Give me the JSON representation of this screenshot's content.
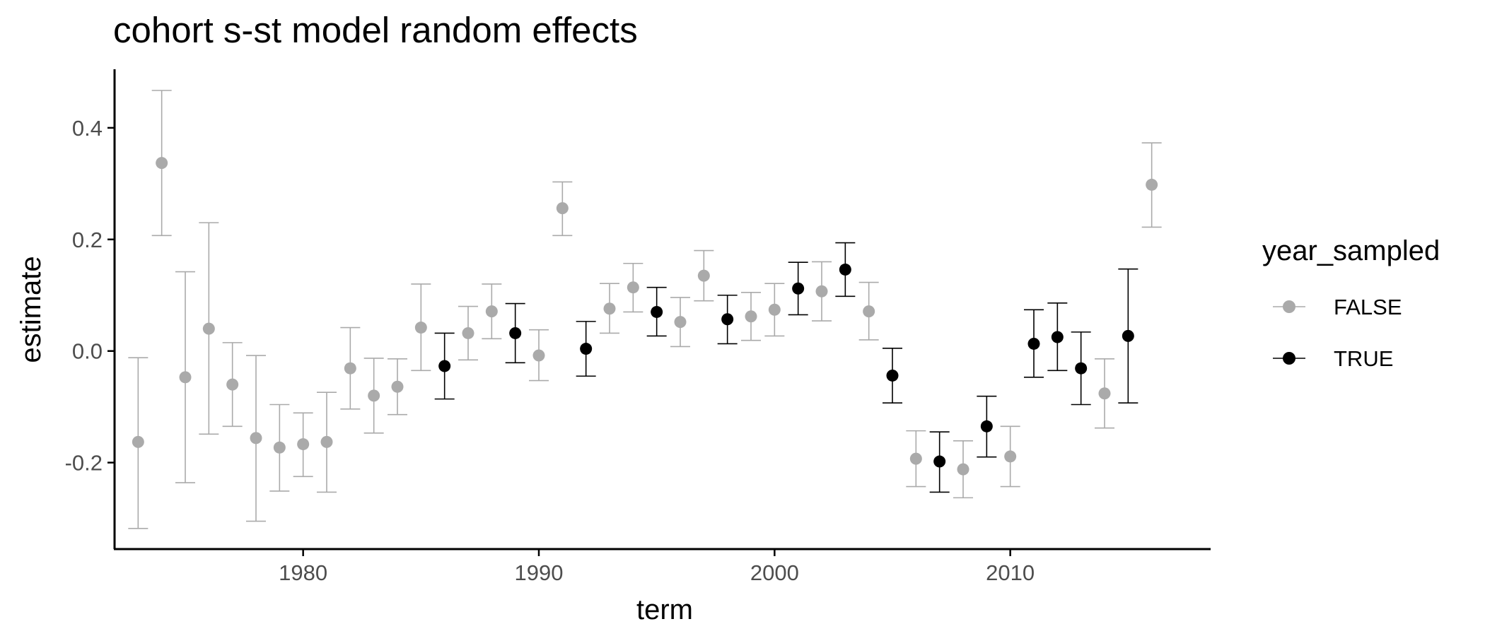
{
  "chart_data": {
    "type": "scatter",
    "title": "cohort s-st model random effects",
    "xlabel": "term",
    "ylabel": "estimate",
    "xlim": [
      1972,
      2018.5
    ],
    "ylim": [
      -0.355,
      0.505
    ],
    "x_ticks": [
      1980,
      1990,
      2000,
      2010
    ],
    "x_tick_labels": [
      "1980",
      "1990",
      "2000",
      "2010"
    ],
    "y_ticks": [
      -0.2,
      0.0,
      0.2,
      0.4
    ],
    "y_tick_labels": [
      "-0.2",
      "0.0",
      "0.2",
      "0.4"
    ],
    "grid": false,
    "legend": {
      "title": "year_sampled",
      "position": "right",
      "entries": [
        {
          "label": "FALSE",
          "color": "#aaaaaa"
        },
        {
          "label": "TRUE",
          "color": "#000000"
        }
      ]
    },
    "series": [
      {
        "name": "FALSE",
        "color": "#aaaaaa",
        "points": [
          {
            "x": 1973,
            "y": -0.163,
            "lo": -0.318,
            "hi": -0.012
          },
          {
            "x": 1974,
            "y": 0.337,
            "lo": 0.207,
            "hi": 0.467
          },
          {
            "x": 1975,
            "y": -0.047,
            "lo": -0.236,
            "hi": 0.142
          },
          {
            "x": 1976,
            "y": 0.04,
            "lo": -0.149,
            "hi": 0.23
          },
          {
            "x": 1977,
            "y": -0.06,
            "lo": -0.135,
            "hi": 0.015
          },
          {
            "x": 1978,
            "y": -0.156,
            "lo": -0.305,
            "hi": -0.008
          },
          {
            "x": 1979,
            "y": -0.173,
            "lo": -0.251,
            "hi": -0.096
          },
          {
            "x": 1980,
            "y": -0.167,
            "lo": -0.225,
            "hi": -0.111
          },
          {
            "x": 1981,
            "y": -0.163,
            "lo": -0.253,
            "hi": -0.074
          },
          {
            "x": 1982,
            "y": -0.031,
            "lo": -0.104,
            "hi": 0.042
          },
          {
            "x": 1983,
            "y": -0.08,
            "lo": -0.147,
            "hi": -0.013
          },
          {
            "x": 1984,
            "y": -0.064,
            "lo": -0.114,
            "hi": -0.014
          },
          {
            "x": 1985,
            "y": 0.042,
            "lo": -0.035,
            "hi": 0.12
          },
          {
            "x": 1987,
            "y": 0.032,
            "lo": -0.016,
            "hi": 0.08
          },
          {
            "x": 1988,
            "y": 0.071,
            "lo": 0.022,
            "hi": 0.12
          },
          {
            "x": 1990,
            "y": -0.008,
            "lo": -0.053,
            "hi": 0.038
          },
          {
            "x": 1991,
            "y": 0.256,
            "lo": 0.207,
            "hi": 0.303
          },
          {
            "x": 1993,
            "y": 0.076,
            "lo": 0.032,
            "hi": 0.121
          },
          {
            "x": 1994,
            "y": 0.114,
            "lo": 0.07,
            "hi": 0.157
          },
          {
            "x": 1996,
            "y": 0.052,
            "lo": 0.008,
            "hi": 0.096
          },
          {
            "x": 1997,
            "y": 0.135,
            "lo": 0.09,
            "hi": 0.18
          },
          {
            "x": 1999,
            "y": 0.062,
            "lo": 0.019,
            "hi": 0.105
          },
          {
            "x": 2000,
            "y": 0.074,
            "lo": 0.027,
            "hi": 0.121
          },
          {
            "x": 2002,
            "y": 0.107,
            "lo": 0.054,
            "hi": 0.16
          },
          {
            "x": 2004,
            "y": 0.071,
            "lo": 0.02,
            "hi": 0.123
          },
          {
            "x": 2006,
            "y": -0.193,
            "lo": -0.243,
            "hi": -0.143
          },
          {
            "x": 2008,
            "y": -0.212,
            "lo": -0.263,
            "hi": -0.161
          },
          {
            "x": 2010,
            "y": -0.189,
            "lo": -0.243,
            "hi": -0.135
          },
          {
            "x": 2014,
            "y": -0.076,
            "lo": -0.138,
            "hi": -0.014
          },
          {
            "x": 2016,
            "y": 0.298,
            "lo": 0.222,
            "hi": 0.373
          }
        ]
      },
      {
        "name": "TRUE",
        "color": "#000000",
        "points": [
          {
            "x": 1986,
            "y": -0.027,
            "lo": -0.086,
            "hi": 0.032
          },
          {
            "x": 1989,
            "y": 0.032,
            "lo": -0.021,
            "hi": 0.085
          },
          {
            "x": 1992,
            "y": 0.004,
            "lo": -0.045,
            "hi": 0.053
          },
          {
            "x": 1995,
            "y": 0.07,
            "lo": 0.027,
            "hi": 0.114
          },
          {
            "x": 1998,
            "y": 0.057,
            "lo": 0.013,
            "hi": 0.1
          },
          {
            "x": 2001,
            "y": 0.112,
            "lo": 0.065,
            "hi": 0.159
          },
          {
            "x": 2003,
            "y": 0.146,
            "lo": 0.098,
            "hi": 0.194
          },
          {
            "x": 2005,
            "y": -0.044,
            "lo": -0.093,
            "hi": 0.005
          },
          {
            "x": 2007,
            "y": -0.198,
            "lo": -0.253,
            "hi": -0.145
          },
          {
            "x": 2009,
            "y": -0.135,
            "lo": -0.19,
            "hi": -0.081
          },
          {
            "x": 2011,
            "y": 0.013,
            "lo": -0.047,
            "hi": 0.074
          },
          {
            "x": 2012,
            "y": 0.025,
            "lo": -0.035,
            "hi": 0.086
          },
          {
            "x": 2013,
            "y": -0.031,
            "lo": -0.096,
            "hi": 0.034
          },
          {
            "x": 2015,
            "y": 0.027,
            "lo": -0.093,
            "hi": 0.147
          }
        ]
      }
    ]
  }
}
